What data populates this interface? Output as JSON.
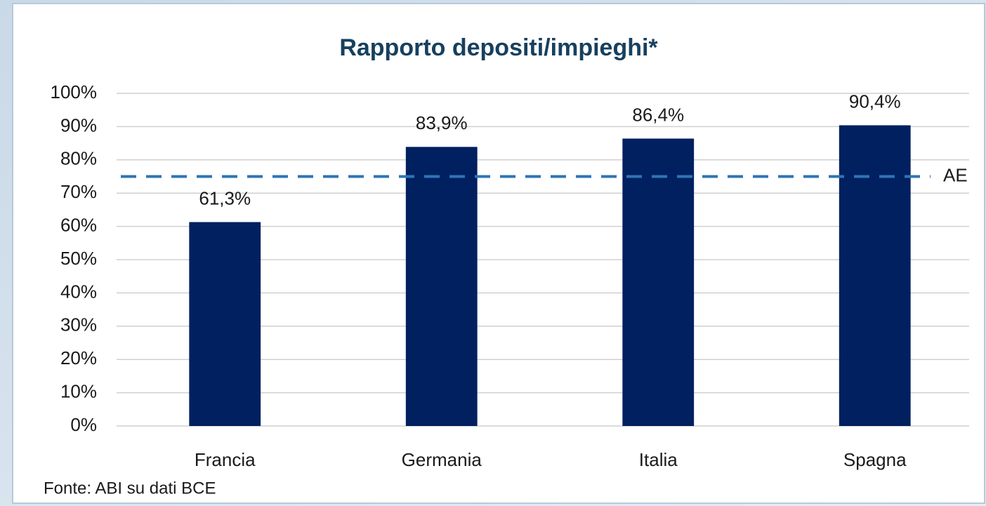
{
  "chart_data": {
    "type": "bar",
    "title": "Rapporto depositi/impieghi*",
    "categories": [
      "Francia",
      "Germania",
      "Italia",
      "Spagna"
    ],
    "values": [
      61.3,
      83.9,
      86.4,
      90.4
    ],
    "value_labels": [
      "61,3%",
      "83,9%",
      "86,4%",
      "90,4%"
    ],
    "color": "#002060",
    "ylim": [
      0,
      100
    ],
    "yticks": [
      {
        "value": 0,
        "label": "0%"
      },
      {
        "value": 10,
        "label": "10%"
      },
      {
        "value": 20,
        "label": "20%"
      },
      {
        "value": 30,
        "label": "30%"
      },
      {
        "value": 40,
        "label": "40%"
      },
      {
        "value": 50,
        "label": "50%"
      },
      {
        "value": 60,
        "label": "60%"
      },
      {
        "value": 70,
        "label": "70%"
      },
      {
        "value": 80,
        "label": "80%"
      },
      {
        "value": 90,
        "label": "90%"
      },
      {
        "value": 100,
        "label": "100%"
      }
    ],
    "grid": true,
    "reference_line": {
      "label": "AE",
      "value": 75,
      "color": "#2e75b6"
    },
    "source": "Fonte: ABI su dati BCE"
  }
}
